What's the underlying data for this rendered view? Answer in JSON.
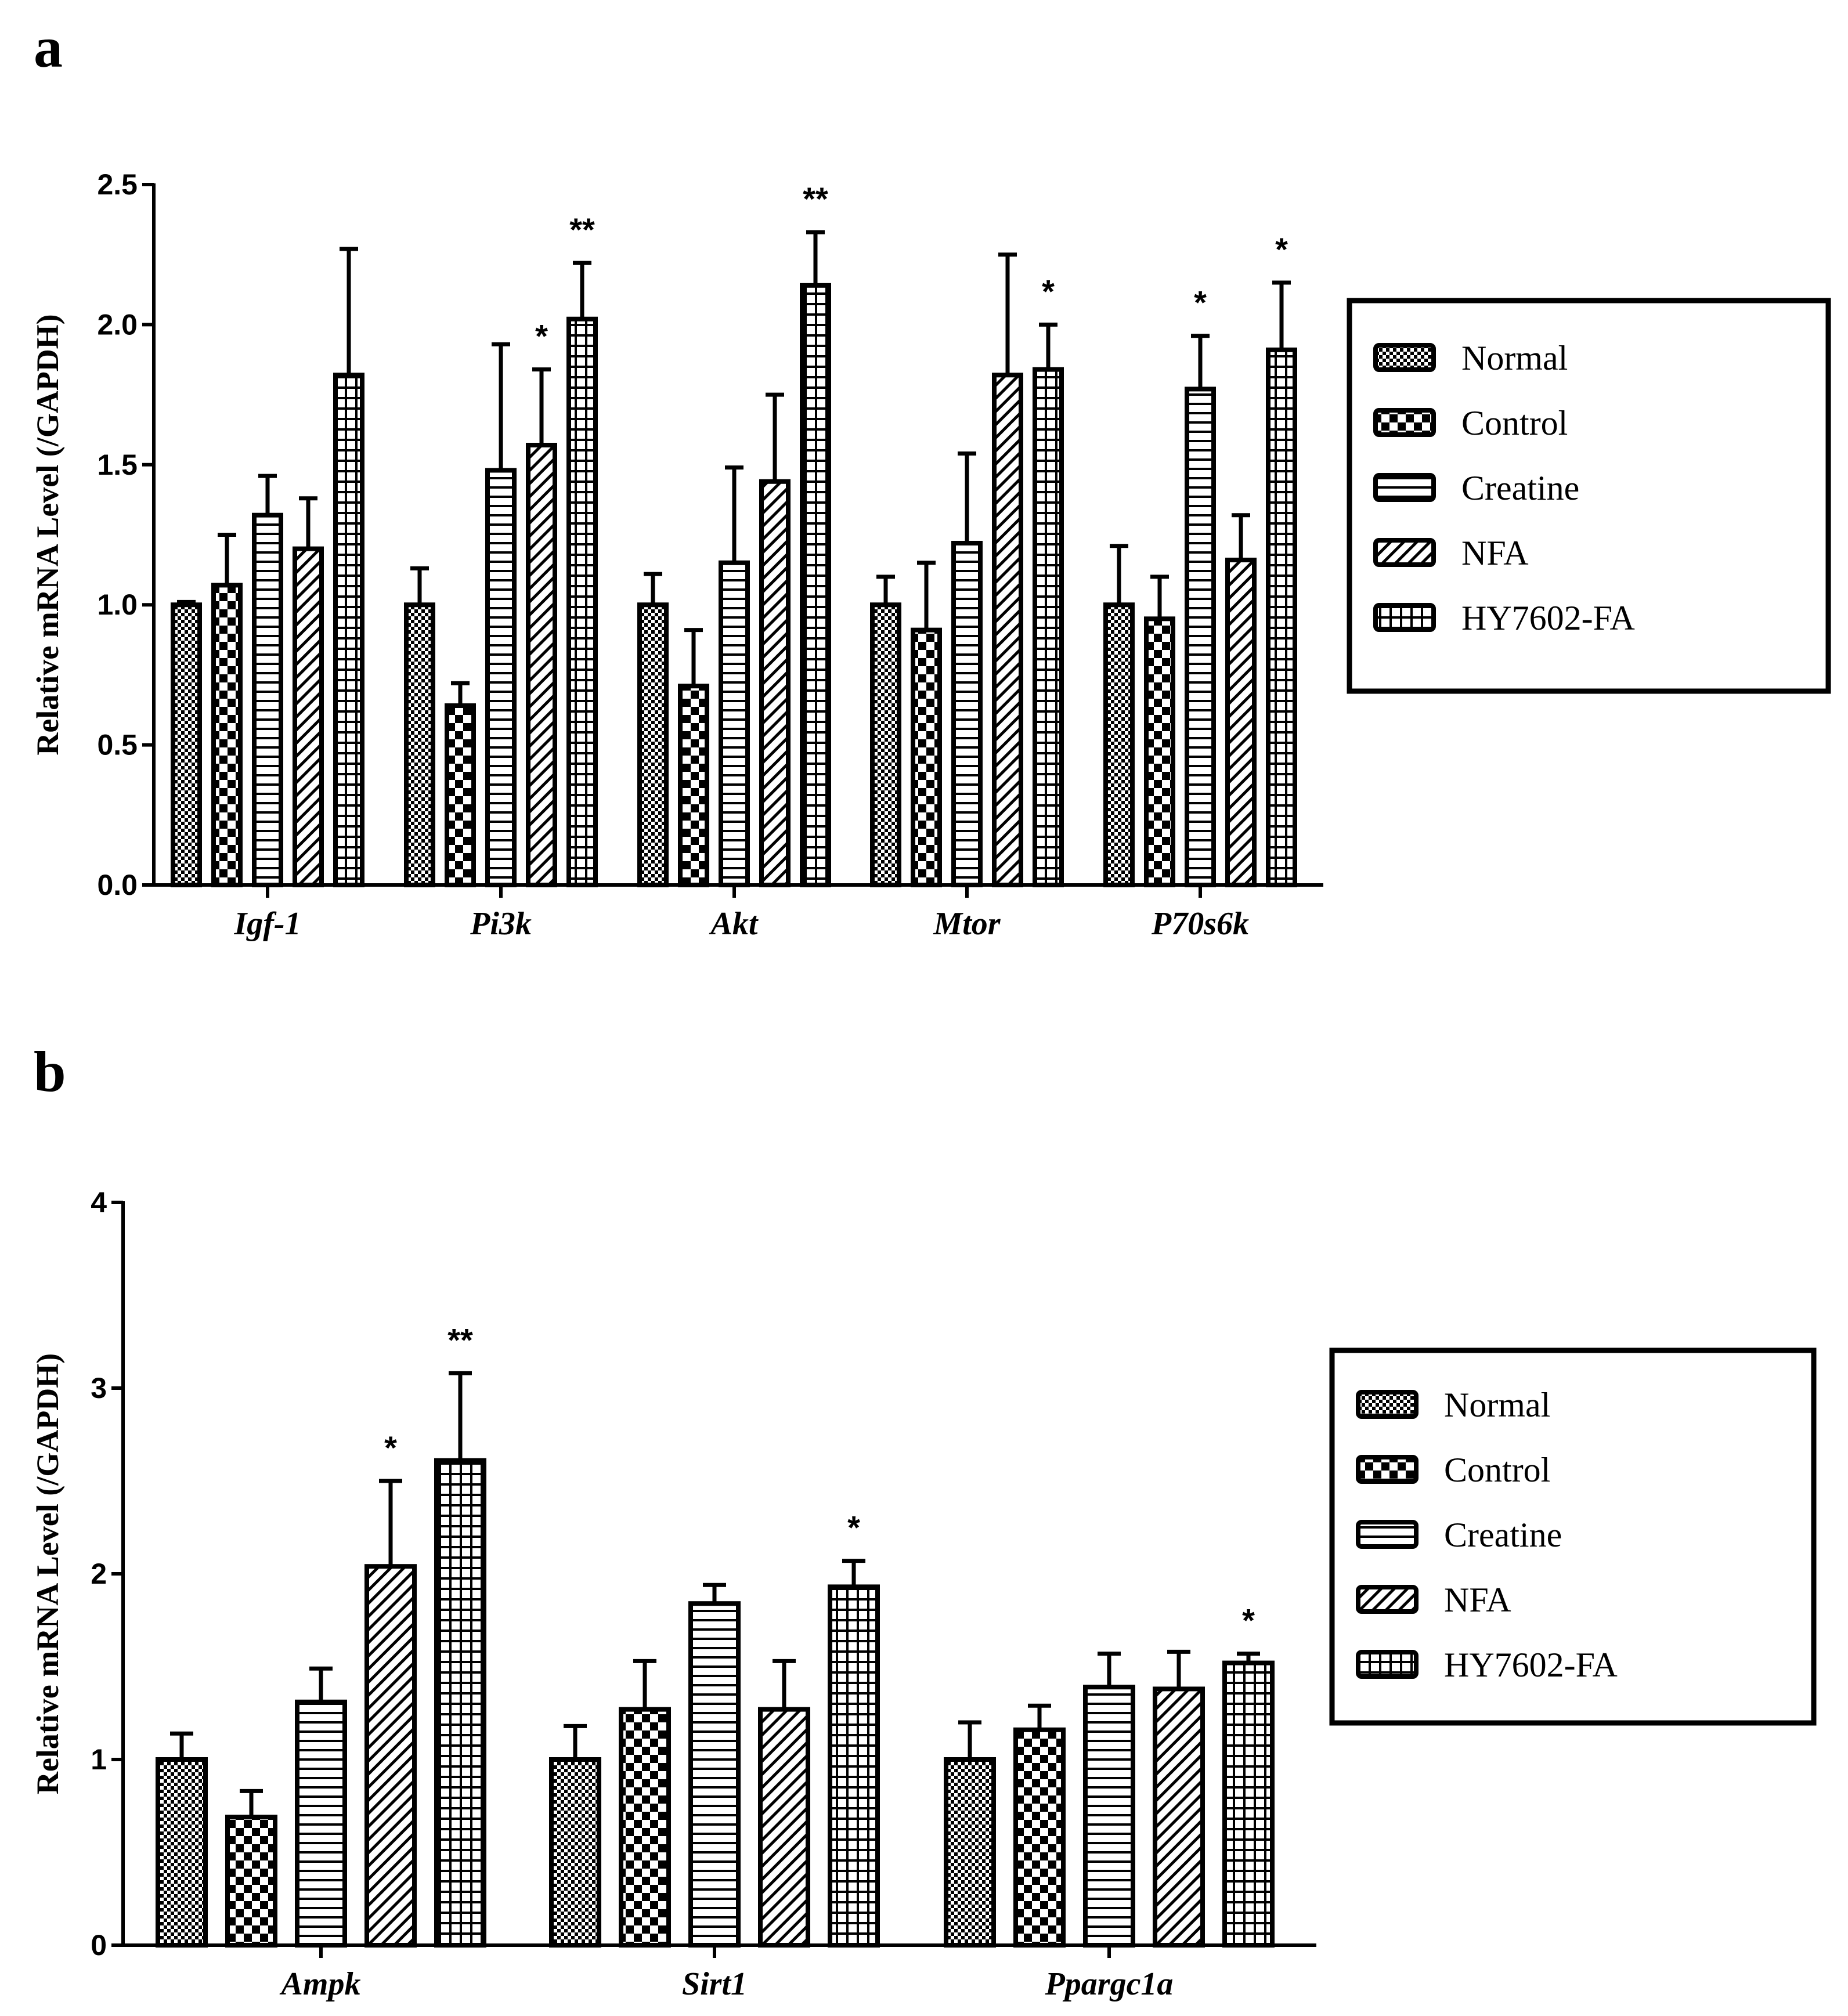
{
  "figure_labels": {
    "a": "a",
    "b": "b"
  },
  "chart_data": [
    {
      "type": "bar",
      "panel": "a",
      "ylabel": "Relative mRNA Level (/GAPDH)",
      "xlabel": "",
      "ylim": [
        0,
        2.5
      ],
      "yticks": [
        "0.0",
        "0.5",
        "1.0",
        "1.5",
        "2.0",
        "2.5"
      ],
      "categories": [
        "Igf-1",
        "Pi3k",
        "Akt",
        "Mtor",
        "P70s6k"
      ],
      "series": [
        {
          "name": "Normal",
          "pattern": "checker-fine",
          "values": [
            1.0,
            1.0,
            1.0,
            1.0,
            1.0
          ],
          "errors": [
            0.01,
            0.13,
            0.11,
            0.1,
            0.21
          ],
          "significance": [
            "",
            "",
            "",
            "",
            ""
          ]
        },
        {
          "name": "Control",
          "pattern": "checker-large",
          "values": [
            1.07,
            0.64,
            0.71,
            0.91,
            0.95
          ],
          "errors": [
            0.18,
            0.08,
            0.2,
            0.24,
            0.15
          ],
          "significance": [
            "",
            "",
            "",
            "",
            ""
          ]
        },
        {
          "name": "Creatine",
          "pattern": "horizontal",
          "values": [
            1.32,
            1.48,
            1.15,
            1.22,
            1.77
          ],
          "errors": [
            0.14,
            0.45,
            0.34,
            0.32,
            0.19
          ],
          "significance": [
            "",
            "",
            "",
            "",
            "*"
          ]
        },
        {
          "name": "NFA",
          "pattern": "diagonal",
          "values": [
            1.2,
            1.57,
            1.44,
            1.82,
            1.16
          ],
          "errors": [
            0.18,
            0.27,
            0.31,
            0.43,
            0.16
          ],
          "significance": [
            "",
            "*",
            "",
            "",
            ""
          ]
        },
        {
          "name": "HY7602-FA",
          "pattern": "grid",
          "values": [
            1.82,
            2.02,
            2.14,
            1.84,
            1.91
          ],
          "errors": [
            0.45,
            0.2,
            0.19,
            0.16,
            0.24
          ],
          "significance": [
            "",
            "**",
            "**",
            "*",
            "*"
          ]
        }
      ],
      "legend": [
        "Normal",
        "Control",
        "Creatine",
        "NFA",
        "HY7602-FA"
      ],
      "legend_position": "right"
    },
    {
      "type": "bar",
      "panel": "b",
      "ylabel": "Relative mRNA Level (/GAPDH)",
      "xlabel": "",
      "ylim": [
        0,
        4
      ],
      "yticks": [
        "0",
        "1",
        "2",
        "3",
        "4"
      ],
      "categories": [
        "Ampk",
        "Sirt1",
        "Ppargc1a"
      ],
      "series": [
        {
          "name": "Normal",
          "pattern": "checker-fine",
          "values": [
            1.0,
            1.0,
            1.0
          ],
          "errors": [
            0.14,
            0.18,
            0.2
          ],
          "significance": [
            "",
            "",
            ""
          ]
        },
        {
          "name": "Control",
          "pattern": "checker-large",
          "values": [
            0.69,
            1.27,
            1.16
          ],
          "errors": [
            0.14,
            0.26,
            0.13
          ],
          "significance": [
            "",
            "",
            ""
          ]
        },
        {
          "name": "Creatine",
          "pattern": "horizontal",
          "values": [
            1.31,
            1.84,
            1.39
          ],
          "errors": [
            0.18,
            0.1,
            0.18
          ],
          "significance": [
            "",
            "",
            ""
          ]
        },
        {
          "name": "NFA",
          "pattern": "diagonal",
          "values": [
            2.04,
            1.27,
            1.38
          ],
          "errors": [
            0.46,
            0.26,
            0.2
          ],
          "significance": [
            "*",
            "",
            ""
          ]
        },
        {
          "name": "HY7602-FA",
          "pattern": "grid",
          "values": [
            2.61,
            1.93,
            1.52
          ],
          "errors": [
            0.47,
            0.14,
            0.05
          ],
          "significance": [
            "**",
            "*",
            "*"
          ]
        }
      ],
      "legend": [
        "Normal",
        "Control",
        "Creatine",
        "NFA",
        "HY7602-FA"
      ],
      "legend_position": "right"
    }
  ]
}
